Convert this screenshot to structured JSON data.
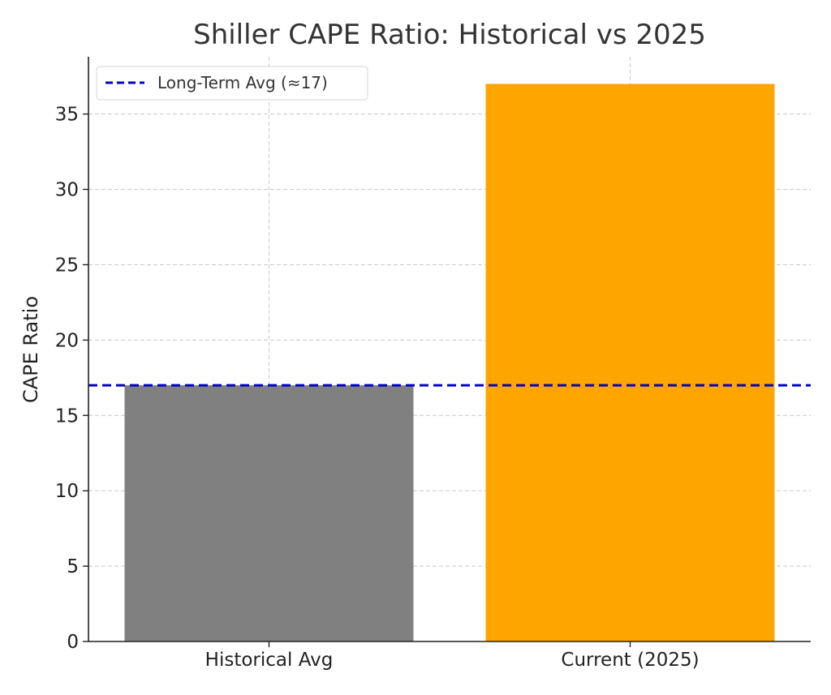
{
  "chart_data": {
    "type": "bar",
    "title": "Shiller CAPE Ratio: Historical vs 2025",
    "xlabel": "",
    "ylabel": "CAPE Ratio",
    "categories": [
      "Historical Avg",
      "Current (2025)"
    ],
    "values": [
      17,
      37
    ],
    "bar_colors": [
      "#808080",
      "#FFA500"
    ],
    "ylim": [
      0,
      38.8
    ],
    "yticks": [
      0,
      5,
      10,
      15,
      20,
      25,
      30,
      35
    ],
    "grid": true,
    "reference_line": {
      "label": "Long-Term Avg (≈17)",
      "value": 17,
      "color": "#0000CC",
      "style": "dashed"
    },
    "legend": {
      "position": "top-left",
      "entries": [
        "Long-Term Avg (≈17)"
      ]
    }
  }
}
